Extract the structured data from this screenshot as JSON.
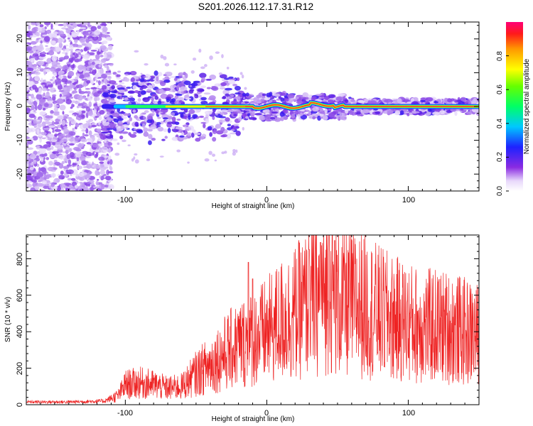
{
  "title": "S201.2026.112.17.31.R12",
  "colors": {
    "line": "#ee2222",
    "frame": "#000000",
    "dots": "#8844ee"
  },
  "chart_data": [
    {
      "type": "heatmap",
      "name": "spectrogram",
      "xlabel": "Height of straight line (km)",
      "ylabel": "Frequency (Hz)",
      "xlim": [
        -170,
        150
      ],
      "ylim": [
        -25,
        25
      ],
      "xticks": [
        -100,
        0,
        100
      ],
      "xtick_labels": [
        "-100",
        "0",
        "100"
      ],
      "yticks": [
        -20,
        -10,
        0,
        10,
        20
      ],
      "ytick_labels": [
        "-20",
        "-10",
        "0",
        "10",
        "20"
      ],
      "ridge": {
        "x_start": -115,
        "x_end": 150,
        "center_freq": 0,
        "approx_peak_amplitude": 0.9
      },
      "colorbar": {
        "label": "Normalized spectral amplitude",
        "range": [
          0,
          1
        ],
        "ticks": [
          0.0,
          0.2,
          0.4,
          0.6,
          0.8
        ],
        "tick_labels": [
          "0.0",
          "0.2",
          "0.4",
          "0.6",
          "0.8"
        ]
      }
    },
    {
      "type": "line",
      "name": "snr",
      "xlabel": "Height of straight line (km)",
      "ylabel": "SNR (10 * v/v)",
      "xlim": [
        -170,
        150
      ],
      "ylim": [
        0,
        930
      ],
      "xticks": [
        -100,
        0,
        100
      ],
      "xtick_labels": [
        "-100",
        "0",
        "100"
      ],
      "yticks": [
        0,
        200,
        400,
        600,
        800
      ],
      "ytick_labels": [
        "0",
        "200",
        "400",
        "600",
        "800"
      ],
      "envelope_x": [
        -170,
        -140,
        -115,
        -105,
        -100,
        -90,
        -80,
        -70,
        -60,
        -50,
        -40,
        -30,
        -20,
        -10,
        0,
        10,
        20,
        30,
        40,
        45,
        50,
        60,
        70,
        80,
        90,
        100,
        110,
        120,
        130,
        140,
        150
      ],
      "envelope_y": [
        15,
        15,
        20,
        50,
        110,
        120,
        110,
        90,
        100,
        170,
        220,
        280,
        330,
        360,
        400,
        460,
        500,
        560,
        600,
        620,
        560,
        560,
        540,
        500,
        470,
        450,
        430,
        430,
        420,
        400,
        380
      ],
      "spikes": [
        {
          "x": -13,
          "y": 780
        },
        {
          "x": -10,
          "y": 690
        },
        {
          "x": 30,
          "y": 850
        },
        {
          "x": 38,
          "y": 890
        },
        {
          "x": 44,
          "y": 930
        },
        {
          "x": 48,
          "y": 900
        }
      ]
    }
  ]
}
